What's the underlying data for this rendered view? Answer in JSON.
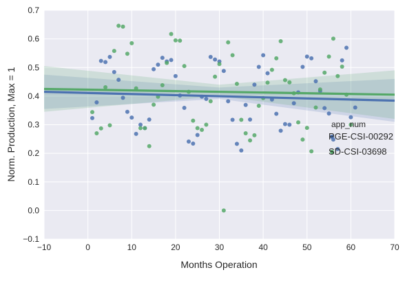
{
  "chart_data": {
    "type": "scatter",
    "xlabel": "Months Operation",
    "ylabel": "Norm. Production, Max = 1",
    "xlim": [
      -10,
      70
    ],
    "ylim": [
      -0.1,
      0.7
    ],
    "xticks": [
      -10,
      0,
      10,
      20,
      30,
      40,
      50,
      60,
      70
    ],
    "yticks": [
      -0.1,
      0.0,
      0.1,
      0.2,
      0.3,
      0.4,
      0.5,
      0.6,
      0.7
    ],
    "xtick_labels": [
      "−10",
      "0",
      "10",
      "20",
      "30",
      "40",
      "50",
      "60",
      "70"
    ],
    "ytick_labels": [
      "−0.1",
      "0.0",
      "0.1",
      "0.2",
      "0.3",
      "0.4",
      "0.5",
      "0.6",
      "0.7"
    ],
    "grid": true,
    "legend": {
      "title": "app_num",
      "placement": "right"
    },
    "series": [
      {
        "name": "PGE-CSI-00292",
        "color": "#4c72b0",
        "fit_line": {
          "x": [
            -10,
            70
          ],
          "y": [
            0.415,
            0.384
          ]
        },
        "ci_band": {
          "x": [
            -10,
            30,
            70
          ],
          "upper": [
            0.475,
            0.43,
            0.46
          ],
          "lower": [
            0.355,
            0.39,
            0.31
          ]
        },
        "points": [
          [
            1,
            0.323
          ],
          [
            2,
            0.378
          ],
          [
            3,
            0.523
          ],
          [
            4,
            0.519
          ],
          [
            5,
            0.537
          ],
          [
            6,
            0.484
          ],
          [
            7,
            0.457
          ],
          [
            8,
            0.394
          ],
          [
            9,
            0.345
          ],
          [
            10,
            0.325
          ],
          [
            11,
            0.268
          ],
          [
            12,
            0.3
          ],
          [
            13,
            0.288
          ],
          [
            14,
            0.318
          ],
          [
            15,
            0.494
          ],
          [
            16,
            0.51
          ],
          [
            17,
            0.534
          ],
          [
            18,
            0.521
          ],
          [
            19,
            0.526
          ],
          [
            20,
            0.47
          ],
          [
            21,
            0.402
          ],
          [
            22,
            0.359
          ],
          [
            23,
            0.241
          ],
          [
            24,
            0.234
          ],
          [
            25,
            0.264
          ],
          [
            26,
            0.398
          ],
          [
            27,
            0.39
          ],
          [
            28,
            0.537
          ],
          [
            29,
            0.528
          ],
          [
            30,
            0.521
          ],
          [
            31,
            0.488
          ],
          [
            32,
            0.382
          ],
          [
            33,
            0.317
          ],
          [
            34,
            0.233
          ],
          [
            35,
            0.21
          ],
          [
            36,
            0.369
          ],
          [
            37,
            0.318
          ],
          [
            38,
            0.44
          ],
          [
            39,
            0.502
          ],
          [
            40,
            0.543
          ],
          [
            41,
            0.48
          ],
          [
            42,
            0.388
          ],
          [
            43,
            0.338
          ],
          [
            44,
            0.279
          ],
          [
            45,
            0.302
          ],
          [
            46,
            0.3
          ],
          [
            47,
            0.375
          ],
          [
            48,
            0.413
          ],
          [
            49,
            0.502
          ],
          [
            50,
            0.538
          ],
          [
            51,
            0.532
          ],
          [
            52,
            0.452
          ],
          [
            53,
            0.418
          ],
          [
            54,
            0.358
          ],
          [
            55,
            0.339
          ],
          [
            56,
            0.248
          ],
          [
            57,
            0.215
          ],
          [
            58,
            0.525
          ],
          [
            59,
            0.569
          ],
          [
            60,
            0.326
          ],
          [
            61,
            0.36
          ]
        ]
      },
      {
        "name": "SD-CSI-03698",
        "color": "#55a868",
        "fit_line": {
          "x": [
            -10,
            70
          ],
          "y": [
            0.425,
            0.405
          ]
        },
        "ci_band": {
          "x": [
            -10,
            30,
            70
          ],
          "upper": [
            0.505,
            0.44,
            0.49
          ],
          "lower": [
            0.345,
            0.4,
            0.32
          ]
        },
        "points": [
          [
            1,
            0.344
          ],
          [
            2,
            0.27
          ],
          [
            3,
            0.287
          ],
          [
            4,
            0.431
          ],
          [
            5,
            0.298
          ],
          [
            6,
            0.558
          ],
          [
            7,
            0.646
          ],
          [
            8,
            0.643
          ],
          [
            9,
            0.548
          ],
          [
            10,
            0.585
          ],
          [
            11,
            0.427
          ],
          [
            12,
            0.288
          ],
          [
            13,
            0.288
          ],
          [
            14,
            0.225
          ],
          [
            15,
            0.37
          ],
          [
            16,
            0.398
          ],
          [
            17,
            0.438
          ],
          [
            18,
            0.516
          ],
          [
            19,
            0.617
          ],
          [
            20,
            0.595
          ],
          [
            21,
            0.594
          ],
          [
            22,
            0.505
          ],
          [
            23,
            0.415
          ],
          [
            24,
            0.314
          ],
          [
            25,
            0.288
          ],
          [
            26,
            0.282
          ],
          [
            27,
            0.3
          ],
          [
            28,
            0.382
          ],
          [
            29,
            0.468
          ],
          [
            30,
            0.512
          ],
          [
            31,
            0.0
          ],
          [
            32,
            0.588
          ],
          [
            33,
            0.543
          ],
          [
            34,
            0.443
          ],
          [
            35,
            0.317
          ],
          [
            36,
            0.27
          ],
          [
            37,
            0.245
          ],
          [
            38,
            0.263
          ],
          [
            39,
            0.366
          ],
          [
            40,
            0.393
          ],
          [
            41,
            0.447
          ],
          [
            42,
            0.492
          ],
          [
            43,
            0.532
          ],
          [
            44,
            0.592
          ],
          [
            45,
            0.456
          ],
          [
            46,
            0.448
          ],
          [
            47,
            0.41
          ],
          [
            48,
            0.308
          ],
          [
            49,
            0.248
          ],
          [
            50,
            0.289
          ],
          [
            51,
            0.207
          ],
          [
            52,
            0.36
          ],
          [
            53,
            0.423
          ],
          [
            54,
            0.482
          ],
          [
            55,
            0.538
          ],
          [
            56,
            0.601
          ],
          [
            57,
            0.47
          ],
          [
            58,
            0.503
          ],
          [
            59,
            0.405
          ],
          [
            60,
            0.3
          ]
        ]
      }
    ]
  }
}
